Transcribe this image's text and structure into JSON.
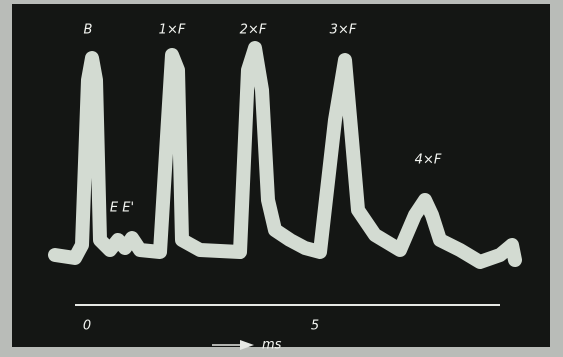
{
  "figure": {
    "peak_labels": [
      "B",
      "1×F",
      "2×F",
      "3×F",
      "4×F"
    ],
    "secondary_label": "E E'",
    "axis_ticks": [
      "0",
      "5"
    ],
    "axis_unit": "ms"
  }
}
